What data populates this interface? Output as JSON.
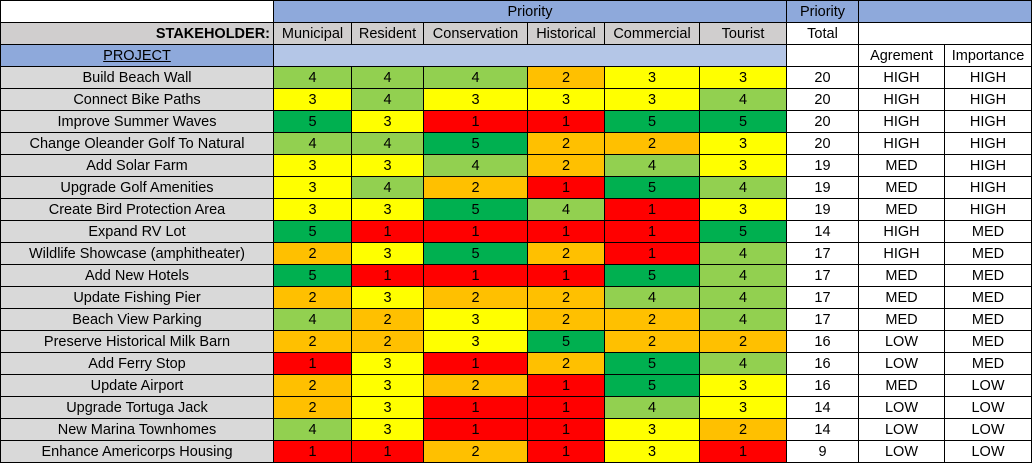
{
  "headers": {
    "priority_group": "Priority",
    "priority_total_line1": "Priority",
    "priority_total_line2": "Total",
    "stakeholder_label": "STAKEHOLDER:",
    "stakeholders": [
      "Municipal",
      "Resident",
      "Conservation",
      "Historical",
      "Commercial",
      "Tourist"
    ],
    "project_label": "PROJECT",
    "agreement_label": "Agrement",
    "importance_label": "Importance"
  },
  "colors": {
    "1": "#ff0000",
    "2": "#ffc000",
    "3": "#ffff00",
    "4": "#92d050",
    "5": "#00b050",
    "header_blue": "#8ea9db",
    "header_gray": "#d0cece",
    "project_column": "#d9d9d9"
  },
  "rows": [
    {
      "project": "Build Beach Wall",
      "scores": [
        4,
        4,
        4,
        2,
        3,
        3
      ],
      "total": "20",
      "agreement": "HIGH",
      "importance": "HIGH"
    },
    {
      "project": "Connect Bike Paths",
      "scores": [
        3,
        4,
        3,
        3,
        3,
        4
      ],
      "total": "20",
      "agreement": "HIGH",
      "importance": "HIGH"
    },
    {
      "project": "Improve Summer Waves",
      "scores": [
        5,
        3,
        1,
        1,
        5,
        5
      ],
      "total": "20",
      "agreement": "HIGH",
      "importance": "HIGH"
    },
    {
      "project": "Change Oleander Golf To Natural",
      "scores": [
        4,
        4,
        5,
        2,
        2,
        3
      ],
      "total": "20",
      "agreement": "HIGH",
      "importance": "HIGH"
    },
    {
      "project": "Add Solar Farm",
      "scores": [
        3,
        3,
        4,
        2,
        4,
        3
      ],
      "total": "19",
      "agreement": "MED",
      "importance": "HIGH"
    },
    {
      "project": "Upgrade Golf Amenities",
      "scores": [
        3,
        4,
        2,
        1,
        5,
        4
      ],
      "total": "19",
      "agreement": "MED",
      "importance": "HIGH"
    },
    {
      "project": "Create Bird Protection Area",
      "scores": [
        3,
        3,
        5,
        4,
        1,
        3
      ],
      "total": "19",
      "agreement": "MED",
      "importance": "HIGH"
    },
    {
      "project": "Expand RV Lot",
      "scores": [
        5,
        1,
        1,
        1,
        1,
        5
      ],
      "total": "14",
      "agreement": "HIGH",
      "importance": "MED"
    },
    {
      "project": "Wildlife Showcase (amphitheater)",
      "scores": [
        2,
        3,
        5,
        2,
        1,
        4
      ],
      "total": "17",
      "agreement": "HIGH",
      "importance": "MED"
    },
    {
      "project": "Add New Hotels",
      "scores": [
        5,
        1,
        1,
        1,
        5,
        4
      ],
      "total": "17",
      "agreement": "MED",
      "importance": "MED"
    },
    {
      "project": "Update Fishing Pier",
      "scores": [
        2,
        3,
        2,
        2,
        4,
        4
      ],
      "total": "17",
      "agreement": "MED",
      "importance": "MED"
    },
    {
      "project": "Beach View Parking",
      "scores": [
        4,
        2,
        3,
        2,
        2,
        4
      ],
      "total": "17",
      "agreement": "MED",
      "importance": "MED"
    },
    {
      "project": "Preserve Historical Milk Barn",
      "scores": [
        2,
        2,
        3,
        5,
        2,
        2
      ],
      "total": "16",
      "agreement": "LOW",
      "importance": "MED"
    },
    {
      "project": "Add Ferry Stop",
      "scores": [
        1,
        3,
        1,
        2,
        5,
        4
      ],
      "total": "16",
      "agreement": "LOW",
      "importance": "MED"
    },
    {
      "project": "Update Airport",
      "scores": [
        2,
        3,
        2,
        1,
        5,
        3
      ],
      "total": "16",
      "agreement": "MED",
      "importance": "LOW"
    },
    {
      "project": "Upgrade Tortuga Jack",
      "scores": [
        2,
        3,
        1,
        1,
        4,
        3
      ],
      "total": "14",
      "agreement": "LOW",
      "importance": "LOW"
    },
    {
      "project": "New Marina Townhomes",
      "scores": [
        4,
        3,
        1,
        1,
        3,
        2
      ],
      "total": "14",
      "agreement": "LOW",
      "importance": "LOW"
    },
    {
      "project": "Enhance Americorps Housing",
      "scores": [
        1,
        1,
        2,
        1,
        3,
        1
      ],
      "total": "9",
      "agreement": "LOW",
      "importance": "LOW"
    }
  ]
}
